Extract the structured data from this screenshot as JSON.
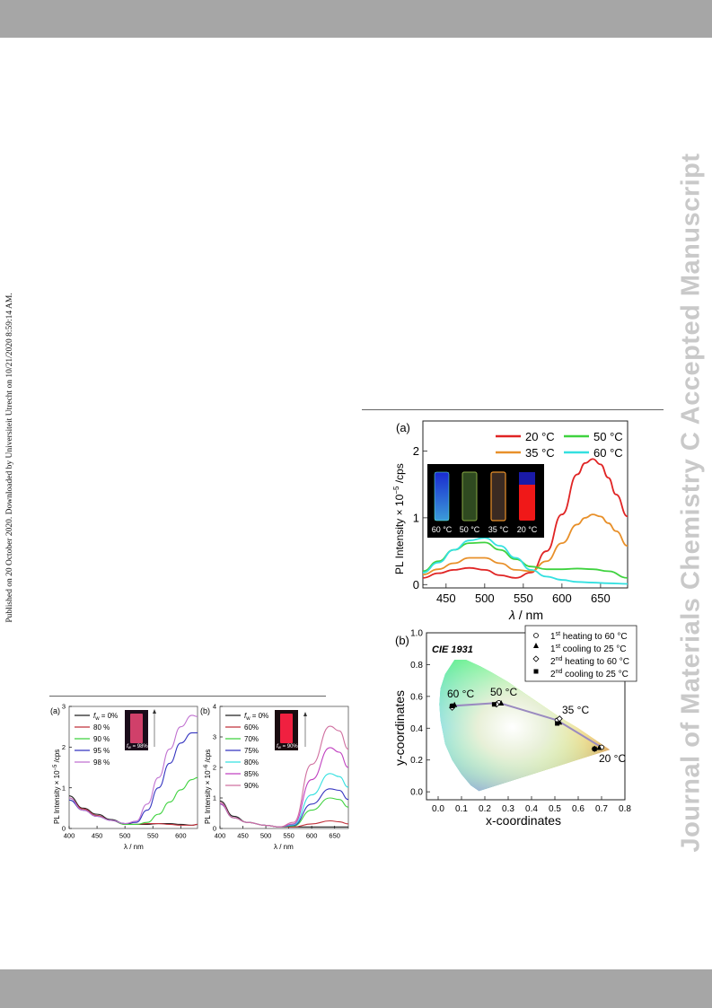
{
  "side_note_left": "Published on 20 October 2020. Downloaded by Universiteit Utrecht on 10/21/2020 8:59:14 AM.",
  "side_note_right": "Journal of Materials Chemistry C Accepted Manuscript",
  "colors": {
    "c20": "#e02424",
    "c35": "#e8902a",
    "c50": "#3fd23f",
    "c60": "#34e0e0",
    "bar": "#a6a6a6",
    "watermark": "#c9c9c9"
  },
  "fig_a": {
    "panel_label": "(a)",
    "ylabel": "PL Intensity × 10",
    "ylabel_exp": "−5",
    "ylabel_unit": " /cps",
    "xlabel_italic": "λ",
    "xlabel_rest": " / nm",
    "legend": [
      "20 °C",
      "35 °C",
      "50 °C",
      "60 °C"
    ],
    "vial_labels": [
      "60 °C",
      "50 °C",
      "35 °C",
      "20 °C"
    ],
    "x_ticks": [
      "450",
      "500",
      "550",
      "600",
      "650"
    ],
    "y_ticks": [
      "0",
      "1",
      "2"
    ]
  },
  "fig_b": {
    "panel_label": "(b)",
    "inset_title": "CIE 1931",
    "xlabel": "x-coordinates",
    "ylabel": "y-coordinates",
    "legend": [
      {
        "pre": "1",
        "sup": "st",
        "post": " heating to 60 °C"
      },
      {
        "pre": "1",
        "sup": "st",
        "post": " cooling to 25 °C"
      },
      {
        "pre": "2",
        "sup": "nd",
        "post": " heating to 60 °C"
      },
      {
        "pre": "2",
        "sup": "nd",
        "post": " cooling to 25 °C"
      }
    ],
    "annotations": [
      "60 °C",
      "50 °C",
      "35 °C",
      "20 °C"
    ],
    "x_ticks": [
      "0.0",
      "0.1",
      "0.2",
      "0.3",
      "0.4",
      "0.5",
      "0.6",
      "0.7",
      "0.8"
    ],
    "y_ticks": [
      "0.0",
      "0.2",
      "0.4",
      "0.6",
      "0.8",
      "1.0"
    ]
  },
  "fig_small_a": {
    "panel_label": "(a)",
    "ylabel": "PL Intensity × 10",
    "ylabel_exp": "−5",
    "ylabel_unit": " /cps",
    "xlabel": "λ / nm",
    "legend_title_f": "f",
    "legend_title_sub": "w",
    "legend_title_rest": " = 0%",
    "legend": [
      "80 %",
      "90 %",
      "95 %",
      "98 %"
    ],
    "inset_f": "f",
    "inset_sub": "w",
    "inset_rest": " = 98%",
    "x_ticks": [
      "400",
      "450",
      "500",
      "550",
      "600"
    ],
    "y_ticks": [
      "0",
      "1",
      "2",
      "3"
    ]
  },
  "fig_small_b": {
    "panel_label": "(b)",
    "ylabel": "PL Intensity × 10",
    "ylabel_exp": "−6",
    "ylabel_unit": " /cps",
    "xlabel": "λ / nm",
    "legend_title_f": "f",
    "legend_title_sub": "w",
    "legend_title_rest": " = 0%",
    "legend": [
      "60%",
      "70%",
      "75%",
      "80%",
      "85%",
      "90%"
    ],
    "inset_f": "f",
    "inset_sub": "w",
    "inset_rest": " = 90%",
    "x_ticks": [
      "400",
      "450",
      "500",
      "550",
      "600",
      "650"
    ],
    "y_ticks": [
      "0",
      "1",
      "2",
      "3",
      "4"
    ]
  },
  "chart_data": [
    {
      "type": "line",
      "panel": "(a)",
      "xlabel": "λ / nm",
      "ylabel": "PL Intensity × 10−5 /cps",
      "xlim": [
        420,
        685
      ],
      "ylim": [
        -0.05,
        2.45
      ],
      "series": [
        {
          "name": "20 °C",
          "x": [
            420,
            440,
            460,
            480,
            500,
            520,
            540,
            560,
            580,
            600,
            620,
            630,
            640,
            650,
            660,
            670,
            685
          ],
          "y": [
            0.1,
            0.17,
            0.22,
            0.25,
            0.22,
            0.14,
            0.1,
            0.18,
            0.5,
            1.05,
            1.65,
            1.82,
            1.88,
            1.8,
            1.6,
            1.35,
            1.02
          ]
        },
        {
          "name": "35 °C",
          "x": [
            420,
            440,
            460,
            480,
            500,
            520,
            540,
            560,
            580,
            600,
            620,
            630,
            640,
            650,
            660,
            670,
            685
          ],
          "y": [
            0.15,
            0.23,
            0.32,
            0.4,
            0.4,
            0.32,
            0.22,
            0.2,
            0.35,
            0.62,
            0.9,
            1.0,
            1.05,
            1.02,
            0.92,
            0.8,
            0.58
          ]
        },
        {
          "name": "50 °C",
          "x": [
            420,
            440,
            460,
            480,
            500,
            520,
            540,
            560,
            580,
            600,
            620,
            640,
            660,
            685
          ],
          "y": [
            0.2,
            0.35,
            0.52,
            0.62,
            0.63,
            0.52,
            0.38,
            0.27,
            0.23,
            0.23,
            0.24,
            0.23,
            0.2,
            0.1
          ]
        },
        {
          "name": "60 °C",
          "x": [
            420,
            440,
            460,
            480,
            500,
            520,
            540,
            560,
            580,
            600,
            620,
            640,
            660,
            685
          ],
          "y": [
            0.18,
            0.33,
            0.52,
            0.66,
            0.7,
            0.58,
            0.4,
            0.22,
            0.12,
            0.07,
            0.04,
            0.03,
            0.02,
            0.01
          ]
        }
      ]
    },
    {
      "type": "scatter",
      "panel": "(b)",
      "title": "CIE 1931",
      "xlabel": "x-coordinates",
      "ylabel": "y-coordinates",
      "xlim": [
        -0.05,
        0.8
      ],
      "ylim": [
        -0.05,
        1.0
      ],
      "series": [
        {
          "name": "1st heating to 60 °C",
          "x": [
            0.7,
            0.51,
            0.26,
            0.06
          ],
          "y": [
            0.28,
            0.45,
            0.56,
            0.54
          ]
        },
        {
          "name": "1st cooling to 25 °C",
          "x": [
            0.07,
            0.27,
            0.52,
            0.69
          ],
          "y": [
            0.55,
            0.56,
            0.44,
            0.28
          ]
        },
        {
          "name": "2nd heating to 60 °C",
          "x": [
            0.67,
            0.52,
            0.25,
            0.06
          ],
          "y": [
            0.27,
            0.46,
            0.55,
            0.53
          ]
        },
        {
          "name": "2nd cooling to 25 °C",
          "x": [
            0.06,
            0.24,
            0.51,
            0.67
          ],
          "y": [
            0.54,
            0.55,
            0.43,
            0.27
          ]
        }
      ]
    },
    {
      "type": "line",
      "panel": "(a)",
      "xlabel": "λ / nm",
      "ylabel": "PL Intensity × 10−5 /cps",
      "xlim": [
        400,
        630
      ],
      "ylim": [
        0,
        3
      ],
      "series": [
        {
          "name": "0%",
          "x": [
            400,
            425,
            450,
            475,
            500,
            520,
            540,
            560,
            580,
            600,
            620,
            630
          ],
          "y": [
            0.8,
            0.5,
            0.35,
            0.22,
            0.12,
            0.1,
            0.1,
            0.12,
            0.12,
            0.1,
            0.08,
            0.1
          ]
        },
        {
          "name": "80 %",
          "x": [
            400,
            425,
            450,
            475,
            500,
            520,
            540,
            560,
            580,
            600,
            620,
            630
          ],
          "y": [
            0.75,
            0.48,
            0.32,
            0.2,
            0.1,
            0.1,
            0.12,
            0.12,
            0.1,
            0.08,
            0.08,
            0.1
          ]
        },
        {
          "name": "90 %",
          "x": [
            400,
            425,
            450,
            475,
            500,
            520,
            540,
            560,
            580,
            600,
            620,
            630
          ],
          "y": [
            0.7,
            0.45,
            0.3,
            0.2,
            0.1,
            0.1,
            0.15,
            0.35,
            0.65,
            0.95,
            1.2,
            1.25
          ]
        },
        {
          "name": "95 %",
          "x": [
            400,
            425,
            450,
            475,
            500,
            520,
            540,
            560,
            580,
            600,
            620,
            630
          ],
          "y": [
            0.7,
            0.45,
            0.3,
            0.2,
            0.12,
            0.15,
            0.45,
            1.0,
            1.6,
            2.1,
            2.35,
            2.35
          ]
        },
        {
          "name": "98 %",
          "x": [
            400,
            425,
            450,
            475,
            500,
            520,
            540,
            560,
            580,
            600,
            620,
            630
          ],
          "y": [
            0.75,
            0.45,
            0.3,
            0.2,
            0.12,
            0.18,
            0.6,
            1.25,
            1.95,
            2.5,
            2.78,
            2.75
          ]
        }
      ]
    },
    {
      "type": "line",
      "panel": "(b)",
      "xlabel": "λ / nm",
      "ylabel": "PL Intensity × 10−6 /cps",
      "xlim": [
        400,
        680
      ],
      "ylim": [
        0,
        4
      ],
      "series": [
        {
          "name": "0%",
          "x": [
            400,
            430,
            460,
            500,
            530,
            560,
            600,
            640,
            680
          ],
          "y": [
            0.9,
            0.4,
            0.2,
            0.1,
            0.05,
            0.05,
            0.05,
            0.05,
            0.05
          ]
        },
        {
          "name": "60%",
          "x": [
            400,
            430,
            460,
            500,
            530,
            560,
            600,
            640,
            660,
            680
          ],
          "y": [
            0.8,
            0.35,
            0.2,
            0.1,
            0.05,
            0.05,
            0.15,
            0.25,
            0.22,
            0.15
          ]
        },
        {
          "name": "70%",
          "x": [
            400,
            430,
            460,
            500,
            530,
            560,
            600,
            640,
            660,
            680
          ],
          "y": [
            0.8,
            0.35,
            0.2,
            0.1,
            0.05,
            0.08,
            0.6,
            1.0,
            0.95,
            0.7
          ]
        },
        {
          "name": "75%",
          "x": [
            400,
            430,
            460,
            500,
            530,
            560,
            600,
            640,
            660,
            680
          ],
          "y": [
            0.8,
            0.35,
            0.2,
            0.1,
            0.05,
            0.1,
            0.8,
            1.3,
            1.25,
            0.95
          ]
        },
        {
          "name": "80%",
          "x": [
            400,
            430,
            460,
            500,
            530,
            560,
            600,
            640,
            660,
            680
          ],
          "y": [
            0.8,
            0.35,
            0.2,
            0.1,
            0.05,
            0.12,
            1.1,
            1.8,
            1.7,
            1.35
          ]
        },
        {
          "name": "85%",
          "x": [
            400,
            430,
            460,
            500,
            530,
            560,
            600,
            640,
            660,
            680
          ],
          "y": [
            0.8,
            0.35,
            0.2,
            0.1,
            0.05,
            0.15,
            1.6,
            2.65,
            2.5,
            2.0
          ]
        },
        {
          "name": "90%",
          "x": [
            400,
            430,
            460,
            500,
            530,
            560,
            600,
            640,
            660,
            680
          ],
          "y": [
            0.85,
            0.35,
            0.2,
            0.1,
            0.05,
            0.2,
            2.1,
            3.35,
            3.2,
            2.6
          ]
        }
      ]
    }
  ]
}
